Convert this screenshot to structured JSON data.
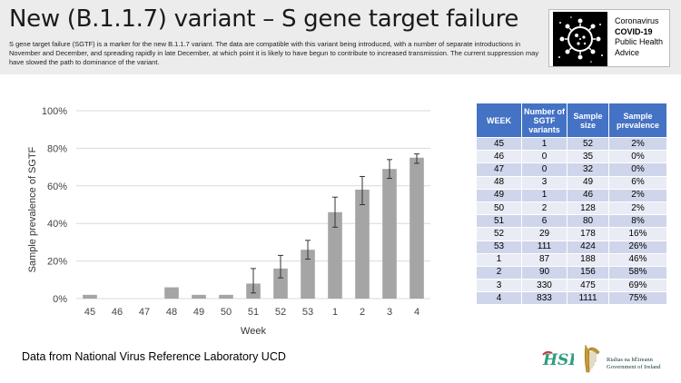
{
  "header": {
    "title": "New (B.1.1.7) variant – S gene target failure",
    "intro": "S gene target failure (SGTF) is a marker for the new B.1.1.7 variant.  The data are compatible with this variant being introduced, with a number of separate introductions in November and December, and spreading rapidly in late December, at which point it is likely to have begun to contribute to increased transmission. The current suppression may have slowed the path to dominance of the variant."
  },
  "logo": {
    "line1": "Coronavirus",
    "line2": "COVID-19",
    "line3": "Public Health",
    "line4": "Advice",
    "icon": "coronavirus-icon"
  },
  "chart_data": {
    "type": "bar",
    "categories": [
      "45",
      "46",
      "47",
      "48",
      "49",
      "50",
      "51",
      "52",
      "53",
      "1",
      "2",
      "3",
      "4"
    ],
    "values": [
      2,
      0,
      0,
      6,
      2,
      2,
      8,
      16,
      26,
      46,
      58,
      69,
      75
    ],
    "error_low": [
      0,
      0,
      0,
      0,
      0,
      0,
      3,
      11,
      21,
      38,
      50,
      64,
      72
    ],
    "error_high": [
      0,
      0,
      0,
      0,
      0,
      0,
      16,
      23,
      31,
      54,
      65,
      74,
      77
    ],
    "xlabel": "Week",
    "ylabel": "Sample prevalence of SGTF",
    "ylim": [
      0,
      100
    ],
    "yticks": [
      "0%",
      "20%",
      "40%",
      "60%",
      "80%",
      "100%"
    ],
    "grid": true,
    "bar_color": "#a5a5a5"
  },
  "table": {
    "headers": [
      "WEEK",
      "Number of SGTF variants",
      "Sample size",
      "Sample prevalence"
    ],
    "rows": [
      [
        "45",
        "1",
        "52",
        "2%"
      ],
      [
        "46",
        "0",
        "35",
        "0%"
      ],
      [
        "47",
        "0",
        "32",
        "0%"
      ],
      [
        "48",
        "3",
        "49",
        "6%"
      ],
      [
        "49",
        "1",
        "46",
        "2%"
      ],
      [
        "50",
        "2",
        "128",
        "2%"
      ],
      [
        "51",
        "6",
        "80",
        "8%"
      ],
      [
        "52",
        "29",
        "178",
        "16%"
      ],
      [
        "53",
        "111",
        "424",
        "26%"
      ],
      [
        "1",
        "87",
        "188",
        "46%"
      ],
      [
        "2",
        "90",
        "156",
        "58%"
      ],
      [
        "3",
        "330",
        "475",
        "69%"
      ],
      [
        "4",
        "833",
        "1111",
        "75%"
      ]
    ],
    "header_color": "#4472c4"
  },
  "footer": {
    "source": "Data from National Virus Reference Laboratory UCD",
    "hse": "HSE",
    "gov_line1": "Rialtas na hÉireann",
    "gov_line2": "Government of Ireland"
  }
}
